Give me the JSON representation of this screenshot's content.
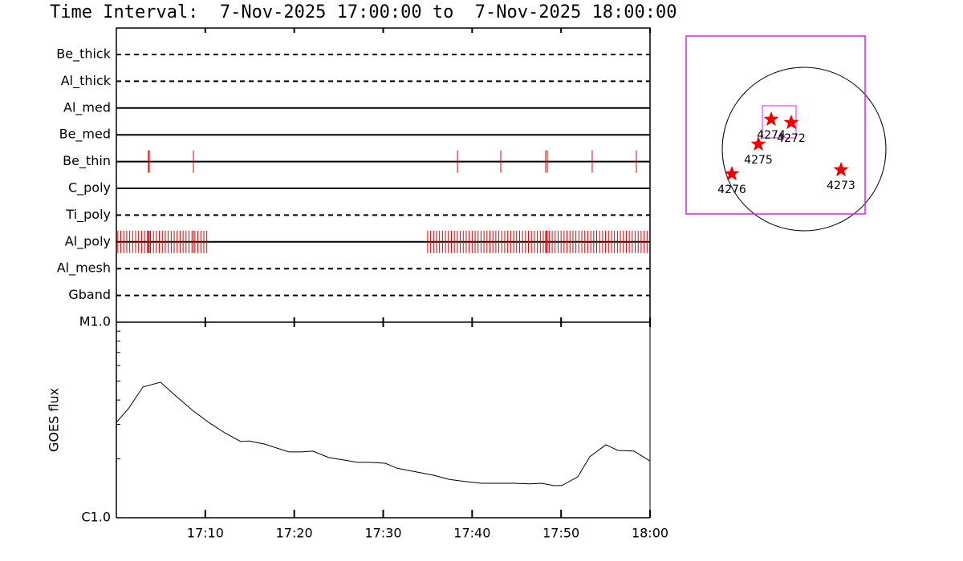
{
  "chart_data": [
    {
      "type": "timeline",
      "title": "Time Interval:  7-Nov-2025 17:00:00 to  7-Nov-2025 18:00:00",
      "xlim": [
        "17:00",
        "18:00"
      ],
      "event_color": "#e00000",
      "rows": [
        {
          "name": "Be_thick",
          "dashed": true,
          "events": []
        },
        {
          "name": "Al_thick",
          "dashed": true,
          "events": []
        },
        {
          "name": "Al_med",
          "dashed": false,
          "events": []
        },
        {
          "name": "Be_med",
          "dashed": false,
          "events": []
        },
        {
          "name": "Be_thin",
          "dashed": false,
          "events": [
            "17:03:36",
            "17:03:42",
            "17:08:40",
            "17:38:21",
            "17:43:13",
            "17:48:16",
            "17:48:27",
            "17:53:30",
            "17:58:28"
          ]
        },
        {
          "name": "C_poly",
          "dashed": false,
          "events": []
        },
        {
          "name": "Ti_poly",
          "dashed": true,
          "events": []
        },
        {
          "name": "Al_poly",
          "dashed": false,
          "events": [
            "17:00:10",
            "17:00:30",
            "17:00:50",
            "17:01:10",
            "17:01:30",
            "17:01:50",
            "17:02:10",
            "17:02:30",
            "17:02:50",
            "17:03:10",
            "17:03:30",
            "17:03:36",
            "17:03:42",
            "17:03:50",
            "17:04:10",
            "17:04:30",
            "17:04:50",
            "17:05:10",
            "17:05:30",
            "17:05:50",
            "17:06:10",
            "17:06:30",
            "17:06:50",
            "17:07:10",
            "17:07:30",
            "17:07:50",
            "17:08:10",
            "17:08:30",
            "17:08:40",
            "17:08:50",
            "17:09:10",
            "17:09:30",
            "17:09:50",
            "17:10:10",
            "17:35:00",
            "17:35:20",
            "17:35:40",
            "17:36:00",
            "17:36:20",
            "17:36:40",
            "17:37:00",
            "17:37:20",
            "17:37:40",
            "17:38:00",
            "17:38:20",
            "17:38:40",
            "17:39:00",
            "17:39:20",
            "17:39:40",
            "17:40:00",
            "17:40:20",
            "17:40:40",
            "17:41:00",
            "17:41:20",
            "17:41:40",
            "17:42:00",
            "17:42:20",
            "17:42:40",
            "17:43:00",
            "17:43:20",
            "17:43:40",
            "17:44:00",
            "17:44:20",
            "17:44:40",
            "17:45:00",
            "17:45:20",
            "17:45:40",
            "17:46:00",
            "17:46:20",
            "17:46:40",
            "17:47:00",
            "17:47:20",
            "17:47:40",
            "17:48:00",
            "17:48:16",
            "17:48:20",
            "17:48:27",
            "17:48:40",
            "17:49:00",
            "17:49:20",
            "17:49:40",
            "17:50:00",
            "17:50:20",
            "17:50:40",
            "17:51:00",
            "17:51:20",
            "17:51:40",
            "17:52:00",
            "17:52:20",
            "17:52:40",
            "17:53:00",
            "17:53:20",
            "17:53:40",
            "17:54:00",
            "17:54:20",
            "17:54:40",
            "17:55:00",
            "17:55:20",
            "17:55:40",
            "17:56:00",
            "17:56:20",
            "17:56:40",
            "17:57:00",
            "17:57:20",
            "17:57:40",
            "17:58:00",
            "17:58:20",
            "17:58:40",
            "17:59:00",
            "17:59:20",
            "17:59:40"
          ]
        },
        {
          "name": "Al_mesh",
          "dashed": true,
          "events": []
        },
        {
          "name": "Gband",
          "dashed": true,
          "events": []
        }
      ]
    },
    {
      "type": "line",
      "ylabel": "GOES flux",
      "log_scale": true,
      "color": "#000000",
      "xlim": [
        "17:00",
        "18:00"
      ],
      "xticks": [
        "17:10",
        "17:20",
        "17:30",
        "17:40",
        "17:50",
        "18:00"
      ],
      "ylim": [
        1e-06,
        1e-05
      ],
      "yticks": [
        {
          "value": 1e-06,
          "label": "C1.0"
        },
        {
          "value": 1e-05,
          "label": "M1.0"
        }
      ],
      "minor_yticks": [
        2e-06,
        3e-06,
        4e-06,
        5e-06,
        6e-06,
        7e-06,
        8e-06,
        9e-06
      ],
      "x": [
        "17:00:00",
        "17:01:21",
        "17:02:59",
        "17:04:58",
        "17:06:46",
        "17:08:34",
        "17:10:23",
        "17:12:11",
        "17:13:59",
        "17:14:53",
        "17:16:41",
        "17:18:03",
        "17:19:24",
        "17:20:45",
        "17:22:06",
        "17:23:54",
        "17:25:43",
        "17:27:04",
        "17:28:25",
        "17:30:14",
        "17:31:35",
        "17:33:50",
        "17:35:38",
        "17:37:27",
        "17:39:15",
        "17:41:03",
        "17:44:40",
        "17:46:28",
        "17:47:49",
        "17:49:10",
        "17:50:05",
        "17:51:53",
        "17:53:14",
        "17:55:02",
        "17:56:23",
        "17:58:12",
        "18:00:00"
      ],
      "values": [
        3.07e-06,
        3.61e-06,
        4.66e-06,
        4.93e-06,
        4.16e-06,
        3.54e-06,
        3.07e-06,
        2.72e-06,
        2.45e-06,
        2.47e-06,
        2.38e-06,
        2.27e-06,
        2.17e-06,
        2.17e-06,
        2.19e-06,
        2.03e-06,
        1.97e-06,
        1.92e-06,
        1.92e-06,
        1.9e-06,
        1.79e-06,
        1.71e-06,
        1.65e-06,
        1.57e-06,
        1.53e-06,
        1.5e-06,
        1.5e-06,
        1.49e-06,
        1.5e-06,
        1.46e-06,
        1.46e-06,
        1.62e-06,
        2.05e-06,
        2.36e-06,
        2.21e-06,
        2.19e-06,
        1.95e-06
      ]
    },
    {
      "type": "map",
      "box_color": "#e020e0",
      "star_color": "#ee0000",
      "regions": [
        {
          "name": "4274"
        },
        {
          "name": "4272"
        },
        {
          "name": "4275"
        },
        {
          "name": "4276"
        },
        {
          "name": "4273"
        }
      ]
    }
  ]
}
